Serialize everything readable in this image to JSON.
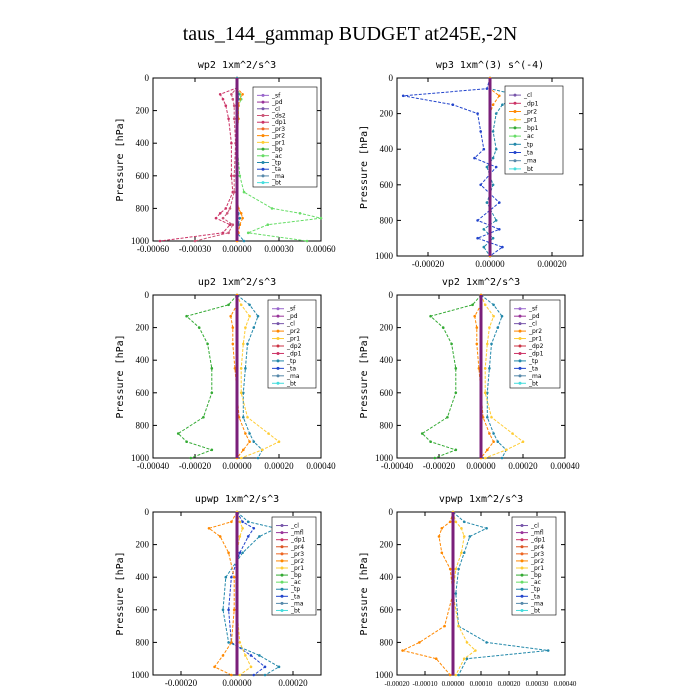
{
  "page": {
    "title": "taus_144_gammap  BUDGET at245E,-2N"
  },
  "colors": {
    "sf": "#9966cc",
    "pd": "#993399",
    "cl": "#7755aa",
    "dp": "#cc2222",
    "dp2": "#cc3344",
    "mfl": "#993399",
    "pr4": "#dd5522",
    "pr3": "#ee6622",
    "pr2": "#ff8800",
    "pr1": "#ffcc33",
    "bp": "#33aa33",
    "bp1": "#33aa33",
    "ac": "#66dd66",
    "tp": "#2288aa",
    "ta": "#2244cc",
    "ma": "#5588aa",
    "bt": "#44dddd",
    "dp1": "#cc3366",
    "ds2": "#cc5577",
    "pd_line": "#7a1f7a"
  },
  "chart_data": [
    {
      "id": "wp2",
      "type": "line",
      "title": "wp2  1xm^2/s^3",
      "ylabel": "Pressure [hPa]",
      "xlim": [
        -0.0006,
        0.0006
      ],
      "ylim": [
        1000,
        0
      ],
      "xticks": [
        "-0.00060",
        "-0.00030",
        "0.00000",
        "0.00030",
        "0.00060"
      ],
      "yticks": [
        "0",
        "200",
        "400",
        "600",
        "800",
        "1000"
      ],
      "legend": [
        "_sf",
        "_pd",
        "_cl",
        "_ds2",
        "_dp1",
        "_pr3",
        "_pr2",
        "_pr1",
        "_bp",
        "_ac",
        "_tp",
        "_ta",
        "_ma",
        "_bt"
      ],
      "levels": [
        0,
        60,
        100,
        130,
        170,
        250,
        400,
        600,
        700,
        800,
        830,
        860,
        900,
        950,
        1000
      ],
      "series": [
        {
          "name": "_ac",
          "key": "ac",
          "values": [
            0,
            0,
            2e-05,
            3e-05,
            1e-05,
            1e-05,
            0,
            2e-05,
            5e-05,
            0.00025,
            0.00045,
            0.0006,
            0.00022,
            8e-05,
            0.0005
          ]
        },
        {
          "name": "_dp1",
          "key": "dp1",
          "values": [
            0,
            0,
            -0.00012,
            -0.0001,
            -8e-05,
            -6e-05,
            -4e-05,
            -4e-05,
            -3e-05,
            -8e-05,
            -0.00012,
            -0.00015,
            -5e-05,
            -0.0001,
            -0.00055
          ]
        },
        {
          "name": "_ds2",
          "key": "ds2",
          "values": [
            0,
            0,
            -4e-05,
            -3e-05,
            -2e-05,
            -2e-05,
            -1e-05,
            -2e-05,
            -2e-05,
            -5e-05,
            -7e-05,
            -0.0001,
            -3e-05,
            -6e-05,
            -0.0003
          ]
        },
        {
          "name": "_pr2",
          "key": "pr2",
          "values": [
            0,
            0,
            4e-05,
            2e-05,
            1e-05,
            1e-05,
            0,
            0,
            0,
            1e-05,
            3e-05,
            4e-05,
            2e-05,
            1e-05,
            0
          ]
        },
        {
          "name": "_tp",
          "key": "tp",
          "values": [
            0,
            0,
            1e-05,
            1e-05,
            0,
            0,
            0,
            0,
            0,
            0,
            1e-05,
            2e-05,
            1e-05,
            0,
            5e-05
          ]
        },
        {
          "name": "_pd",
          "key": "pd_line",
          "values": [
            0,
            0,
            0,
            0,
            0,
            0,
            0,
            0,
            0,
            0,
            0,
            0,
            0,
            0,
            0
          ]
        }
      ]
    },
    {
      "id": "wp3",
      "type": "line",
      "title": "wp3  1xm^(3) s^(-4)",
      "ylabel": "Pressure [hPa]",
      "xlim": [
        -0.0003,
        0.0003
      ],
      "ylim": [
        1000,
        0
      ],
      "xticks": [
        "-0.00020",
        "0.00000",
        "0.00020"
      ],
      "yticks": [
        "0",
        "200",
        "400",
        "600",
        "800",
        "1000"
      ],
      "legend": [
        "_cl",
        "_dp1",
        "_pr2",
        "_pr1",
        "_bp1",
        "_ac",
        "_tp",
        "_ta",
        "_ma",
        "_bt"
      ],
      "levels": [
        0,
        60,
        100,
        150,
        200,
        300,
        400,
        450,
        500,
        600,
        700,
        800,
        850,
        900,
        950,
        1000
      ],
      "series": [
        {
          "name": "_ta",
          "key": "ta",
          "values": [
            0,
            -1e-05,
            -0.00028,
            -0.00012,
            -4e-05,
            -3e-05,
            -2e-05,
            -5e-05,
            2e-05,
            -3e-05,
            3e-05,
            -4e-05,
            3e-05,
            -4e-05,
            4e-05,
            0
          ]
        },
        {
          "name": "_tp",
          "key": "tp",
          "values": [
            0,
            0,
            0.0001,
            4e-05,
            2e-05,
            1e-05,
            2e-05,
            1e-05,
            -1e-05,
            1e-05,
            -1e-05,
            2e-05,
            -2e-05,
            1e-05,
            -2e-05,
            0
          ]
        },
        {
          "name": "_pr2",
          "key": "pr2",
          "values": [
            0,
            0,
            3e-05,
            1e-05,
            0,
            0,
            0,
            0,
            0,
            0,
            0,
            0,
            0,
            0,
            0,
            0
          ]
        },
        {
          "name": "_cl",
          "key": "pd_line",
          "values": [
            0,
            0,
            0,
            0,
            0,
            0,
            0,
            0,
            0,
            0,
            0,
            0,
            0,
            0,
            0,
            0
          ]
        }
      ]
    },
    {
      "id": "up2",
      "type": "line",
      "title": "up2  1xm^2/s^3",
      "ylabel": "Pressure [hPa]",
      "xlim": [
        -0.0004,
        0.0004
      ],
      "ylim": [
        1000,
        0
      ],
      "xticks": [
        "-0.00040",
        "-0.00020",
        "0.00000",
        "0.00020",
        "0.00040"
      ],
      "yticks": [
        "0",
        "200",
        "400",
        "600",
        "800",
        "1000"
      ],
      "legend": [
        "_sf",
        "_pd",
        "_cl",
        "_pr2",
        "_pr1",
        "_dp2",
        "_dp1",
        "_tp",
        "_ta",
        "_ma",
        "_bt"
      ],
      "levels": [
        0,
        60,
        130,
        200,
        300,
        450,
        600,
        750,
        850,
        900,
        950,
        1000
      ],
      "series": [
        {
          "name": "_dp1",
          "key": "bp",
          "values": [
            0,
            -4e-05,
            -0.00024,
            -0.00018,
            -0.00014,
            -0.00012,
            -0.00012,
            -0.00016,
            -0.00028,
            -0.00024,
            -0.00012,
            -0.00022
          ]
        },
        {
          "name": "_tp",
          "key": "tp",
          "values": [
            0,
            6e-05,
            0.0001,
            8e-05,
            5e-05,
            4e-05,
            3e-05,
            3e-05,
            6e-05,
            8e-05,
            0.00012,
            0.0001
          ]
        },
        {
          "name": "_pr1",
          "key": "pr1",
          "values": [
            0,
            2e-05,
            6e-05,
            4e-05,
            3e-05,
            2e-05,
            2e-05,
            5e-05,
            0.00015,
            0.0002,
            0.00012,
            2e-05
          ]
        },
        {
          "name": "_pr2",
          "key": "pr2",
          "values": [
            0,
            0,
            -3e-05,
            -2e-05,
            -2e-05,
            -1e-05,
            0,
            1e-05,
            4e-05,
            6e-05,
            3e-05,
            0
          ]
        },
        {
          "name": "_pd",
          "key": "pd_line",
          "values": [
            0,
            0,
            0,
            0,
            0,
            0,
            0,
            0,
            0,
            0,
            0,
            0
          ]
        }
      ]
    },
    {
      "id": "vp2",
      "type": "line",
      "title": "vp2  1xm^2/s^3",
      "ylabel": "Pressure [hPa]",
      "xlim": [
        -0.0004,
        0.0004
      ],
      "ylim": [
        1000,
        0
      ],
      "xticks": [
        "-0.00040",
        "-0.00020",
        "0.00000",
        "0.00020",
        "0.00040"
      ],
      "yticks": [
        "0",
        "200",
        "400",
        "600",
        "800",
        "1000"
      ],
      "legend": [
        "_sf",
        "_pd",
        "_cl",
        "_pr2",
        "_pr1",
        "_dp2",
        "_dp1",
        "_tp",
        "_ta",
        "_ma",
        "_bt"
      ],
      "levels": [
        0,
        60,
        130,
        200,
        300,
        450,
        600,
        750,
        850,
        900,
        950,
        1000
      ],
      "series": [
        {
          "name": "_dp1",
          "key": "bp",
          "values": [
            0,
            -4e-05,
            -0.00024,
            -0.00018,
            -0.00014,
            -0.00012,
            -0.00012,
            -0.00016,
            -0.00028,
            -0.00024,
            -0.00012,
            -0.00022
          ]
        },
        {
          "name": "_tp",
          "key": "tp",
          "values": [
            0,
            6e-05,
            0.0001,
            8e-05,
            5e-05,
            4e-05,
            3e-05,
            3e-05,
            6e-05,
            8e-05,
            0.00012,
            0.0001
          ]
        },
        {
          "name": "_pr1",
          "key": "pr1",
          "values": [
            0,
            2e-05,
            6e-05,
            4e-05,
            3e-05,
            2e-05,
            2e-05,
            5e-05,
            0.00015,
            0.0002,
            0.00012,
            2e-05
          ]
        },
        {
          "name": "_pr2",
          "key": "pr2",
          "values": [
            0,
            0,
            -3e-05,
            -2e-05,
            -2e-05,
            -1e-05,
            0,
            1e-05,
            4e-05,
            6e-05,
            3e-05,
            0
          ]
        },
        {
          "name": "_pd",
          "key": "pd_line",
          "values": [
            0,
            0,
            0,
            0,
            0,
            0,
            0,
            0,
            0,
            0,
            0,
            0
          ]
        }
      ]
    },
    {
      "id": "upwp",
      "type": "line",
      "title": "upwp  1xm^2/s^3",
      "ylabel": "Pressure [hPa]",
      "xlim": [
        -0.0003,
        0.0003
      ],
      "ylim": [
        1000,
        0
      ],
      "xticks": [
        "-0.00020",
        "0.00000",
        "0.00020"
      ],
      "yticks": [
        "0",
        "200",
        "400",
        "600",
        "800",
        "1000"
      ],
      "legend": [
        "_cl",
        "_mfl",
        "_dp1",
        "_pr4",
        "_pr3",
        "_pr2",
        "_pr1",
        "_bp",
        "_ac",
        "_tp",
        "_ta",
        "_ma",
        "_bt"
      ],
      "levels": [
        0,
        60,
        100,
        150,
        250,
        400,
        600,
        800,
        880,
        950,
        1000
      ],
      "series": [
        {
          "name": "_tp",
          "key": "tp",
          "values": [
            0,
            4e-05,
            0.00014,
            8e-05,
            2e-05,
            -4e-05,
            -5e-05,
            -3e-05,
            8e-05,
            0.00015,
            0.0001
          ]
        },
        {
          "name": "_ta",
          "key": "ta",
          "values": [
            0,
            2e-05,
            6e-05,
            4e-05,
            1e-05,
            -2e-05,
            -3e-05,
            -2e-05,
            5e-05,
            0.0001,
            6e-05
          ]
        },
        {
          "name": "_pr2",
          "key": "pr2",
          "values": [
            0,
            -2e-05,
            -0.0001,
            -6e-05,
            -3e-05,
            -1e-05,
            -1e-05,
            -2e-05,
            -5e-05,
            -8e-05,
            -2e-05
          ]
        },
        {
          "name": "_pr1",
          "key": "pr1",
          "values": [
            0,
            1e-05,
            2e-05,
            1e-05,
            0,
            0,
            0,
            1e-05,
            3e-05,
            5e-05,
            1e-05
          ]
        },
        {
          "name": "_mfl",
          "key": "pd_line",
          "values": [
            0,
            0,
            0,
            0,
            0,
            0,
            0,
            0,
            0,
            0,
            0
          ]
        }
      ]
    },
    {
      "id": "vpwp",
      "type": "line",
      "title": "vpwp  1xm^2/s^3",
      "ylabel": "Pressure [hPa]",
      "xlim": [
        -0.0002,
        0.0004
      ],
      "ylim": [
        1000,
        0
      ],
      "xticks": [
        "-0.00020",
        "-0.00010",
        "0.00000",
        "0.00010",
        "0.00020",
        "0.00030",
        "0.00040"
      ],
      "yticks": [
        "0",
        "200",
        "400",
        "600",
        "800",
        "1000"
      ],
      "legend": [
        "_cl",
        "_mfl",
        "_dp1",
        "_pr4",
        "_pr3",
        "_pr2",
        "_pr1",
        "_bp",
        "_ac",
        "_tp",
        "_ta",
        "_ma",
        "_bt"
      ],
      "levels": [
        0,
        60,
        100,
        150,
        250,
        350,
        500,
        700,
        800,
        850,
        900,
        1000
      ],
      "series": [
        {
          "name": "_tp",
          "key": "tp",
          "values": [
            0,
            4e-05,
            0.00012,
            6e-05,
            4e-05,
            2e-05,
            1e-05,
            2e-05,
            0.00012,
            0.00034,
            5e-05,
            2e-05
          ]
        },
        {
          "name": "_pr2",
          "key": "pr2",
          "values": [
            0,
            -1e-05,
            -4e-05,
            -5e-05,
            -4e-05,
            -1e-05,
            0,
            -3e-05,
            -0.00012,
            -0.00018,
            -6e-05,
            -1e-05
          ]
        },
        {
          "name": "_pr1",
          "key": "pr1",
          "values": [
            0,
            1e-05,
            3e-05,
            4e-05,
            3e-05,
            1e-05,
            0,
            2e-05,
            5e-05,
            8e-05,
            4e-05,
            1e-05
          ]
        },
        {
          "name": "_mfl",
          "key": "pd_line",
          "values": [
            0,
            0,
            0,
            0,
            0,
            0,
            0,
            0,
            0,
            0,
            0,
            0
          ]
        }
      ]
    }
  ]
}
